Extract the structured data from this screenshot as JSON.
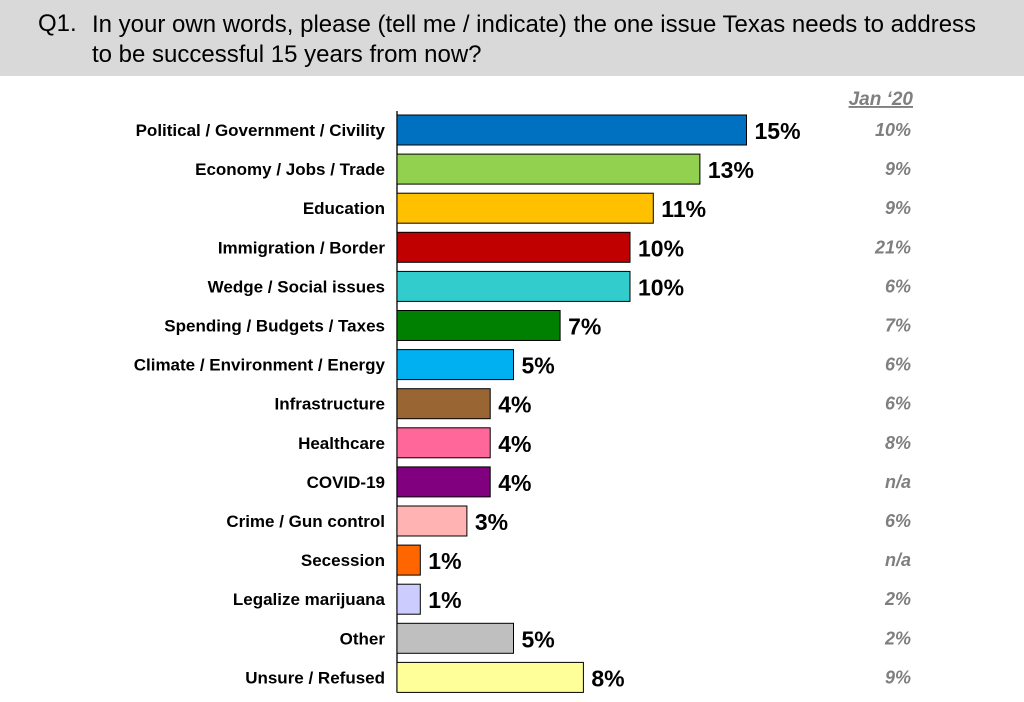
{
  "question": {
    "number": "Q1.",
    "text": "In your own words, please (tell me / indicate) the one issue Texas needs to address to be successful 15 years from now?"
  },
  "chart_data": {
    "type": "bar",
    "orientation": "horizontal",
    "categories": [
      "Political / Government / Civility",
      "Economy / Jobs / Trade",
      "Education",
      "Immigration / Border",
      "Wedge / Social issues",
      "Spending / Budgets / Taxes",
      "Climate / Environment / Energy",
      "Infrastructure",
      "Healthcare",
      "COVID-19",
      "Crime / Gun control",
      "Secession",
      "Legalize marijuana",
      "Other",
      "Unsure / Refused"
    ],
    "values": [
      15,
      13,
      11,
      10,
      10,
      7,
      5,
      4,
      4,
      4,
      3,
      1,
      1,
      5,
      8
    ],
    "value_labels": [
      "15%",
      "13%",
      "11%",
      "10%",
      "10%",
      "7%",
      "5%",
      "4%",
      "4%",
      "4%",
      "3%",
      "1%",
      "1%",
      "5%",
      "8%"
    ],
    "colors": [
      "#0070c0",
      "#92d050",
      "#ffc000",
      "#c00000",
      "#33cccc",
      "#008000",
      "#00b0f0",
      "#996633",
      "#ff6699",
      "#800080",
      "#ffb3b3",
      "#ff6600",
      "#ccccff",
      "#bfbfbf",
      "#ffff99"
    ],
    "comparison": {
      "header": "Jan ‘20",
      "values": [
        "10%",
        "9%",
        "9%",
        "21%",
        "6%",
        "7%",
        "6%",
        "6%",
        "8%",
        "n/a",
        "6%",
        "n/a",
        "2%",
        "2%",
        "9%"
      ]
    },
    "xlim": [
      0,
      100
    ],
    "grid": false,
    "legend": "none"
  }
}
